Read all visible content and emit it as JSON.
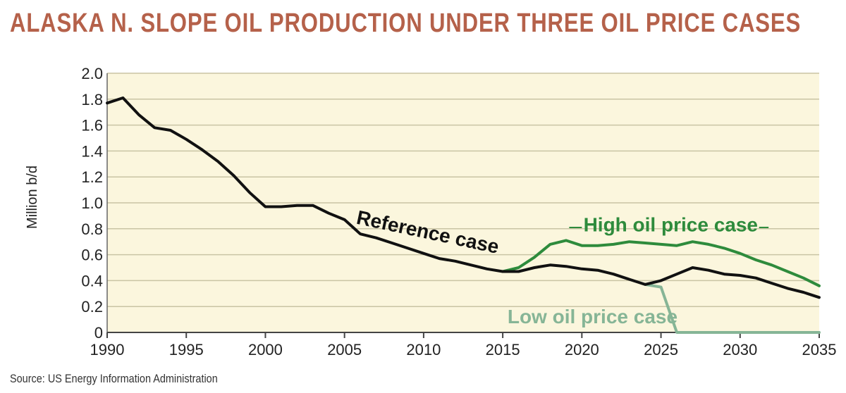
{
  "title": "ALASKA N. SLOPE OIL PRODUCTION UNDER THREE OIL PRICE CASES",
  "source": "Source: US Energy Information Administration",
  "colors": {
    "title": "#b5614a",
    "plot_background": "#fbf6dd",
    "gridline": "#c9c4a4",
    "reference": "#111111",
    "high": "#2e8b3c",
    "low": "#86b596"
  },
  "chart_data": {
    "type": "line",
    "title": "ALASKA N. SLOPE OIL PRODUCTION UNDER THREE OIL PRICE CASES",
    "xlabel": "",
    "ylabel": "Million b/d",
    "xlim": [
      1990,
      2035
    ],
    "ylim": [
      0,
      2.0
    ],
    "grid": true,
    "x_ticks": [
      "1990",
      "1995",
      "2000",
      "2005",
      "2010",
      "2015",
      "2020",
      "2025",
      "2030",
      "2035"
    ],
    "y_ticks": [
      "0",
      "0.2",
      "0.4",
      "0.6",
      "0.8",
      "1.0",
      "1.2",
      "1.4",
      "1.6",
      "1.8",
      "2.0"
    ],
    "series": [
      {
        "name": "Reference case",
        "color": "#111111",
        "points": [
          [
            1990,
            1.77
          ],
          [
            1991,
            1.81
          ],
          [
            1992,
            1.68
          ],
          [
            1993,
            1.58
          ],
          [
            1994,
            1.56
          ],
          [
            1995,
            1.49
          ],
          [
            1996,
            1.41
          ],
          [
            1997,
            1.32
          ],
          [
            1998,
            1.21
          ],
          [
            1999,
            1.08
          ],
          [
            2000,
            0.97
          ],
          [
            2001,
            0.97
          ],
          [
            2002,
            0.98
          ],
          [
            2003,
            0.98
          ],
          [
            2004,
            0.92
          ],
          [
            2005,
            0.87
          ],
          [
            2006,
            0.76
          ],
          [
            2007,
            0.73
          ],
          [
            2008,
            0.69
          ],
          [
            2009,
            0.65
          ],
          [
            2010,
            0.61
          ],
          [
            2011,
            0.57
          ],
          [
            2012,
            0.55
          ],
          [
            2013,
            0.52
          ],
          [
            2014,
            0.49
          ],
          [
            2015,
            0.47
          ],
          [
            2016,
            0.47
          ],
          [
            2017,
            0.5
          ],
          [
            2018,
            0.52
          ],
          [
            2019,
            0.51
          ],
          [
            2020,
            0.49
          ],
          [
            2021,
            0.48
          ],
          [
            2022,
            0.45
          ],
          [
            2023,
            0.41
          ],
          [
            2024,
            0.37
          ],
          [
            2025,
            0.4
          ],
          [
            2026,
            0.45
          ],
          [
            2027,
            0.5
          ],
          [
            2028,
            0.48
          ],
          [
            2029,
            0.45
          ],
          [
            2030,
            0.44
          ],
          [
            2031,
            0.42
          ],
          [
            2032,
            0.38
          ],
          [
            2033,
            0.34
          ],
          [
            2034,
            0.31
          ],
          [
            2035,
            0.27
          ]
        ]
      },
      {
        "name": "High oil price case",
        "color": "#2e8b3c",
        "points": [
          [
            2015,
            0.47
          ],
          [
            2016,
            0.5
          ],
          [
            2017,
            0.58
          ],
          [
            2018,
            0.68
          ],
          [
            2019,
            0.71
          ],
          [
            2020,
            0.67
          ],
          [
            2021,
            0.67
          ],
          [
            2022,
            0.68
          ],
          [
            2023,
            0.7
          ],
          [
            2024,
            0.69
          ],
          [
            2025,
            0.68
          ],
          [
            2026,
            0.67
          ],
          [
            2027,
            0.7
          ],
          [
            2028,
            0.68
          ],
          [
            2029,
            0.65
          ],
          [
            2030,
            0.61
          ],
          [
            2031,
            0.56
          ],
          [
            2032,
            0.52
          ],
          [
            2033,
            0.47
          ],
          [
            2034,
            0.42
          ],
          [
            2035,
            0.36
          ]
        ]
      },
      {
        "name": "Low oil price case",
        "color": "#86b596",
        "points": [
          [
            2024,
            0.37
          ],
          [
            2025,
            0.35
          ],
          [
            2026,
            0.0
          ],
          [
            2027,
            0.0
          ],
          [
            2028,
            0.0
          ],
          [
            2029,
            0.0
          ],
          [
            2030,
            0.0
          ],
          [
            2031,
            0.0
          ],
          [
            2032,
            0.0
          ],
          [
            2033,
            0.0
          ],
          [
            2034,
            0.0
          ],
          [
            2035,
            0.0
          ]
        ]
      }
    ],
    "annotations": [
      "Reference case",
      "High oil price case",
      "Low oil price case"
    ]
  }
}
